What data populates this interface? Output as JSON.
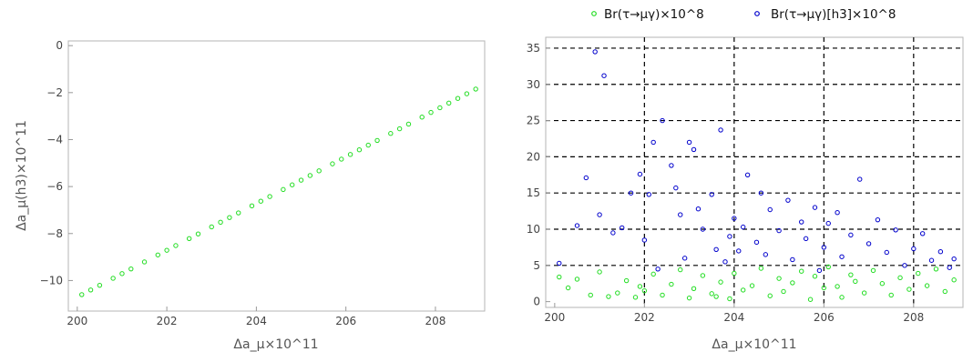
{
  "chart_data": [
    {
      "type": "scatter",
      "xlabel": "Δa_μ×10^11",
      "ylabel": "Δa_μ(h3)×10^11",
      "xlim": [
        199.8,
        209.1
      ],
      "ylim": [
        -11.3,
        0.2
      ],
      "xticks": [
        200,
        202,
        204,
        206,
        208
      ],
      "yticks": [
        0,
        -2,
        -4,
        -6,
        -8,
        -10
      ],
      "xtick_labels": [
        "200",
        "202",
        "204",
        "206",
        "208"
      ],
      "ytick_labels": [
        "0",
        "−2",
        "−4",
        "−6",
        "−8",
        "−10"
      ],
      "grid": false,
      "series": [
        {
          "color": "#22dd22",
          "trend": {
            "x": [
              200.0,
              208.95
            ],
            "y": [
              -10.7,
              -1.8
            ]
          },
          "x": [
            200.1,
            200.3,
            200.5,
            200.8,
            201.0,
            201.2,
            201.5,
            201.8,
            202.0,
            202.2,
            202.5,
            202.7,
            203.0,
            203.2,
            203.4,
            203.6,
            203.9,
            204.1,
            204.3,
            204.6,
            204.8,
            205.0,
            205.2,
            205.4,
            205.7,
            205.9,
            206.1,
            206.3,
            206.5,
            206.7,
            207.0,
            207.2,
            207.4,
            207.7,
            207.9,
            208.1,
            208.3,
            208.5,
            208.7,
            208.9
          ]
        }
      ]
    },
    {
      "type": "scatter",
      "xlabel": "Δa_μ×10^11",
      "ylabel": "",
      "xlim": [
        199.8,
        209.1
      ],
      "ylim": [
        -0.8,
        36.5
      ],
      "xticks": [
        200,
        202,
        204,
        206,
        208
      ],
      "yticks": [
        0,
        5,
        10,
        15,
        20,
        25,
        30,
        35
      ],
      "xtick_labels": [
        "200",
        "202",
        "204",
        "206",
        "208"
      ],
      "ytick_labels": [
        "0",
        "5",
        "10",
        "15",
        "20",
        "25",
        "30",
        "35"
      ],
      "grid": true,
      "grid_style": "dashed",
      "legend_placement": "top",
      "series": [
        {
          "name": "Br(τ→μγ)×10^8",
          "color": "#22dd22",
          "points": [
            [
              200.1,
              3.4
            ],
            [
              200.3,
              1.9
            ],
            [
              200.5,
              3.1
            ],
            [
              200.8,
              0.9
            ],
            [
              201.0,
              4.1
            ],
            [
              201.2,
              0.7
            ],
            [
              201.4,
              1.2
            ],
            [
              201.6,
              2.9
            ],
            [
              201.8,
              0.6
            ],
            [
              202.0,
              1.5
            ],
            [
              202.2,
              3.8
            ],
            [
              202.4,
              0.9
            ],
            [
              202.6,
              2.4
            ],
            [
              202.8,
              4.4
            ],
            [
              203.0,
              0.5
            ],
            [
              203.1,
              1.8
            ],
            [
              203.3,
              3.6
            ],
            [
              203.5,
              1.1
            ],
            [
              203.7,
              2.7
            ],
            [
              203.9,
              0.4
            ],
            [
              204.0,
              3.9
            ],
            [
              204.2,
              1.6
            ],
            [
              204.4,
              2.2
            ],
            [
              204.6,
              4.6
            ],
            [
              204.8,
              0.8
            ],
            [
              205.0,
              3.2
            ],
            [
              205.1,
              1.4
            ],
            [
              205.3,
              2.6
            ],
            [
              205.5,
              4.2
            ],
            [
              205.7,
              0.3
            ],
            [
              205.8,
              3.5
            ],
            [
              206.0,
              1.9
            ],
            [
              206.1,
              4.8
            ],
            [
              206.3,
              2.1
            ],
            [
              206.4,
              0.6
            ],
            [
              206.6,
              3.7
            ],
            [
              206.7,
              2.8
            ],
            [
              206.9,
              1.2
            ],
            [
              207.1,
              4.3
            ],
            [
              207.3,
              2.5
            ],
            [
              207.5,
              0.9
            ],
            [
              207.7,
              3.3
            ],
            [
              207.9,
              1.7
            ],
            [
              208.1,
              3.9
            ],
            [
              208.3,
              2.2
            ],
            [
              208.5,
              4.5
            ],
            [
              208.7,
              1.4
            ],
            [
              208.9,
              3.0
            ],
            [
              201.9,
              2.1
            ],
            [
              203.6,
              0.7
            ]
          ]
        },
        {
          "name": "Br(τ→μγ)[h3]×10^8",
          "color": "#0000cc",
          "points": [
            [
              200.1,
              5.3
            ],
            [
              200.5,
              10.5
            ],
            [
              200.7,
              17.1
            ],
            [
              200.9,
              34.5
            ],
            [
              201.0,
              12.0
            ],
            [
              201.1,
              31.2
            ],
            [
              201.3,
              9.5
            ],
            [
              201.5,
              10.2
            ],
            [
              201.7,
              15.0
            ],
            [
              201.9,
              17.6
            ],
            [
              202.0,
              8.5
            ],
            [
              202.1,
              14.8
            ],
            [
              202.2,
              22.0
            ],
            [
              202.3,
              4.5
            ],
            [
              202.4,
              25.0
            ],
            [
              202.6,
              18.8
            ],
            [
              202.7,
              15.7
            ],
            [
              202.8,
              12.0
            ],
            [
              202.9,
              6.0
            ],
            [
              203.0,
              22.0
            ],
            [
              203.1,
              21.0
            ],
            [
              203.2,
              12.8
            ],
            [
              203.3,
              10.0
            ],
            [
              203.5,
              14.8
            ],
            [
              203.6,
              7.2
            ],
            [
              203.7,
              23.7
            ],
            [
              203.8,
              5.5
            ],
            [
              203.9,
              9.0
            ],
            [
              204.0,
              11.5
            ],
            [
              204.1,
              7.0
            ],
            [
              204.2,
              10.3
            ],
            [
              204.3,
              17.5
            ],
            [
              204.5,
              8.2
            ],
            [
              204.6,
              15.0
            ],
            [
              204.7,
              6.5
            ],
            [
              204.8,
              12.7
            ],
            [
              205.0,
              9.8
            ],
            [
              205.2,
              14.0
            ],
            [
              205.3,
              5.8
            ],
            [
              205.5,
              11.0
            ],
            [
              205.6,
              8.7
            ],
            [
              205.8,
              13.0
            ],
            [
              206.0,
              7.5
            ],
            [
              206.1,
              10.8
            ],
            [
              206.3,
              12.3
            ],
            [
              206.4,
              6.2
            ],
            [
              206.6,
              9.2
            ],
            [
              206.8,
              16.9
            ],
            [
              207.0,
              8.0
            ],
            [
              207.2,
              11.3
            ],
            [
              207.4,
              6.8
            ],
            [
              207.6,
              9.9
            ],
            [
              207.8,
              5.0
            ],
            [
              208.0,
              7.3
            ],
            [
              208.2,
              9.4
            ],
            [
              208.4,
              5.7
            ],
            [
              208.6,
              6.9
            ],
            [
              208.8,
              4.7
            ],
            [
              208.9,
              5.9
            ],
            [
              205.9,
              4.3
            ]
          ]
        }
      ]
    }
  ]
}
